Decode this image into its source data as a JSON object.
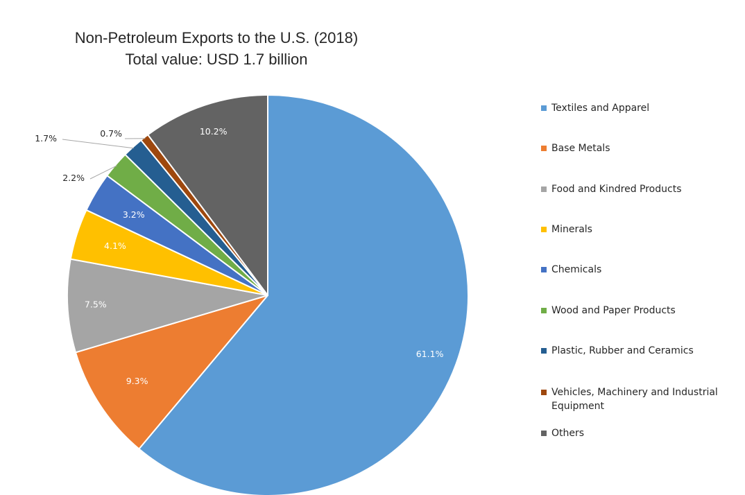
{
  "chart_data": {
    "type": "pie",
    "title": "Non-Petroleum Exports to the U.S. (2018)",
    "subtitle": "Total value: USD 1.7 billion",
    "legend_position": "right",
    "slices": [
      {
        "label": "Textiles and Apparel",
        "value": 61.1,
        "value_label": "61.1%",
        "color": "#5B9BD5"
      },
      {
        "label": "Base Metals",
        "value": 9.3,
        "value_label": "9.3%",
        "color": "#ED7D31"
      },
      {
        "label": "Food and Kindred Products",
        "value": 7.5,
        "value_label": "7.5%",
        "color": "#A5A5A5"
      },
      {
        "label": "Minerals",
        "value": 4.1,
        "value_label": "4.1%",
        "color": "#FFC000"
      },
      {
        "label": "Chemicals",
        "value": 3.2,
        "value_label": "3.2%",
        "color": "#4472C4"
      },
      {
        "label": "Wood and Paper Products",
        "value": 2.2,
        "value_label": "2.2%",
        "color": "#70AD47"
      },
      {
        "label": "Plastic, Rubber and Ceramics",
        "value": 1.7,
        "value_label": "1.7%",
        "color": "#255E91"
      },
      {
        "label": "Vehicles, Machinery and Industrial Equipment",
        "value": 0.7,
        "value_label": "0.7%",
        "color": "#9E480E"
      },
      {
        "label": "Others",
        "value": 10.2,
        "value_label": "10.2%",
        "color": "#636363"
      }
    ]
  }
}
